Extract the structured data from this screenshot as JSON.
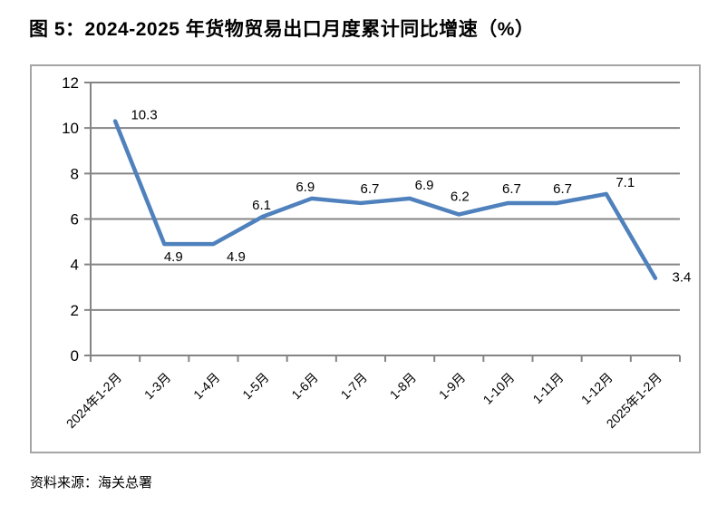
{
  "page": {
    "title": "图 5：2024-2025 年货物贸易出口月度累计同比增速（%）",
    "source": "资料来源：海关总署"
  },
  "chart_data": {
    "type": "line",
    "title": "图 5：2024-2025 年货物贸易出口月度累计同比增速（%）",
    "categories": [
      "2024年1-2月",
      "1-3月",
      "1-4月",
      "1-5月",
      "1-6月",
      "1-7月",
      "1-8月",
      "1-9月",
      "1-10月",
      "1-11月",
      "1-12月",
      "2025年1-2月"
    ],
    "values": [
      10.3,
      4.9,
      4.9,
      6.1,
      6.9,
      6.7,
      6.9,
      6.2,
      6.7,
      6.7,
      7.1,
      3.4
    ],
    "data_labels": [
      "10.3",
      "4.9",
      "4.9",
      "6.1",
      "6.9",
      "6.7",
      "6.9",
      "6.2",
      "6.7",
      "6.7",
      "7.1",
      "3.4"
    ],
    "xlabel": "",
    "ylabel": "",
    "ylim": [
      0,
      12
    ],
    "yticks": [
      0,
      2,
      4,
      6,
      8,
      10,
      12
    ],
    "grid": true,
    "legend": "none",
    "line_color": "#4f81bd",
    "grid_color": "#848484",
    "axis_color": "#848484",
    "frame_color": "#a6a6a6",
    "text_color": "#000000",
    "source": "资料来源：海关总署"
  }
}
